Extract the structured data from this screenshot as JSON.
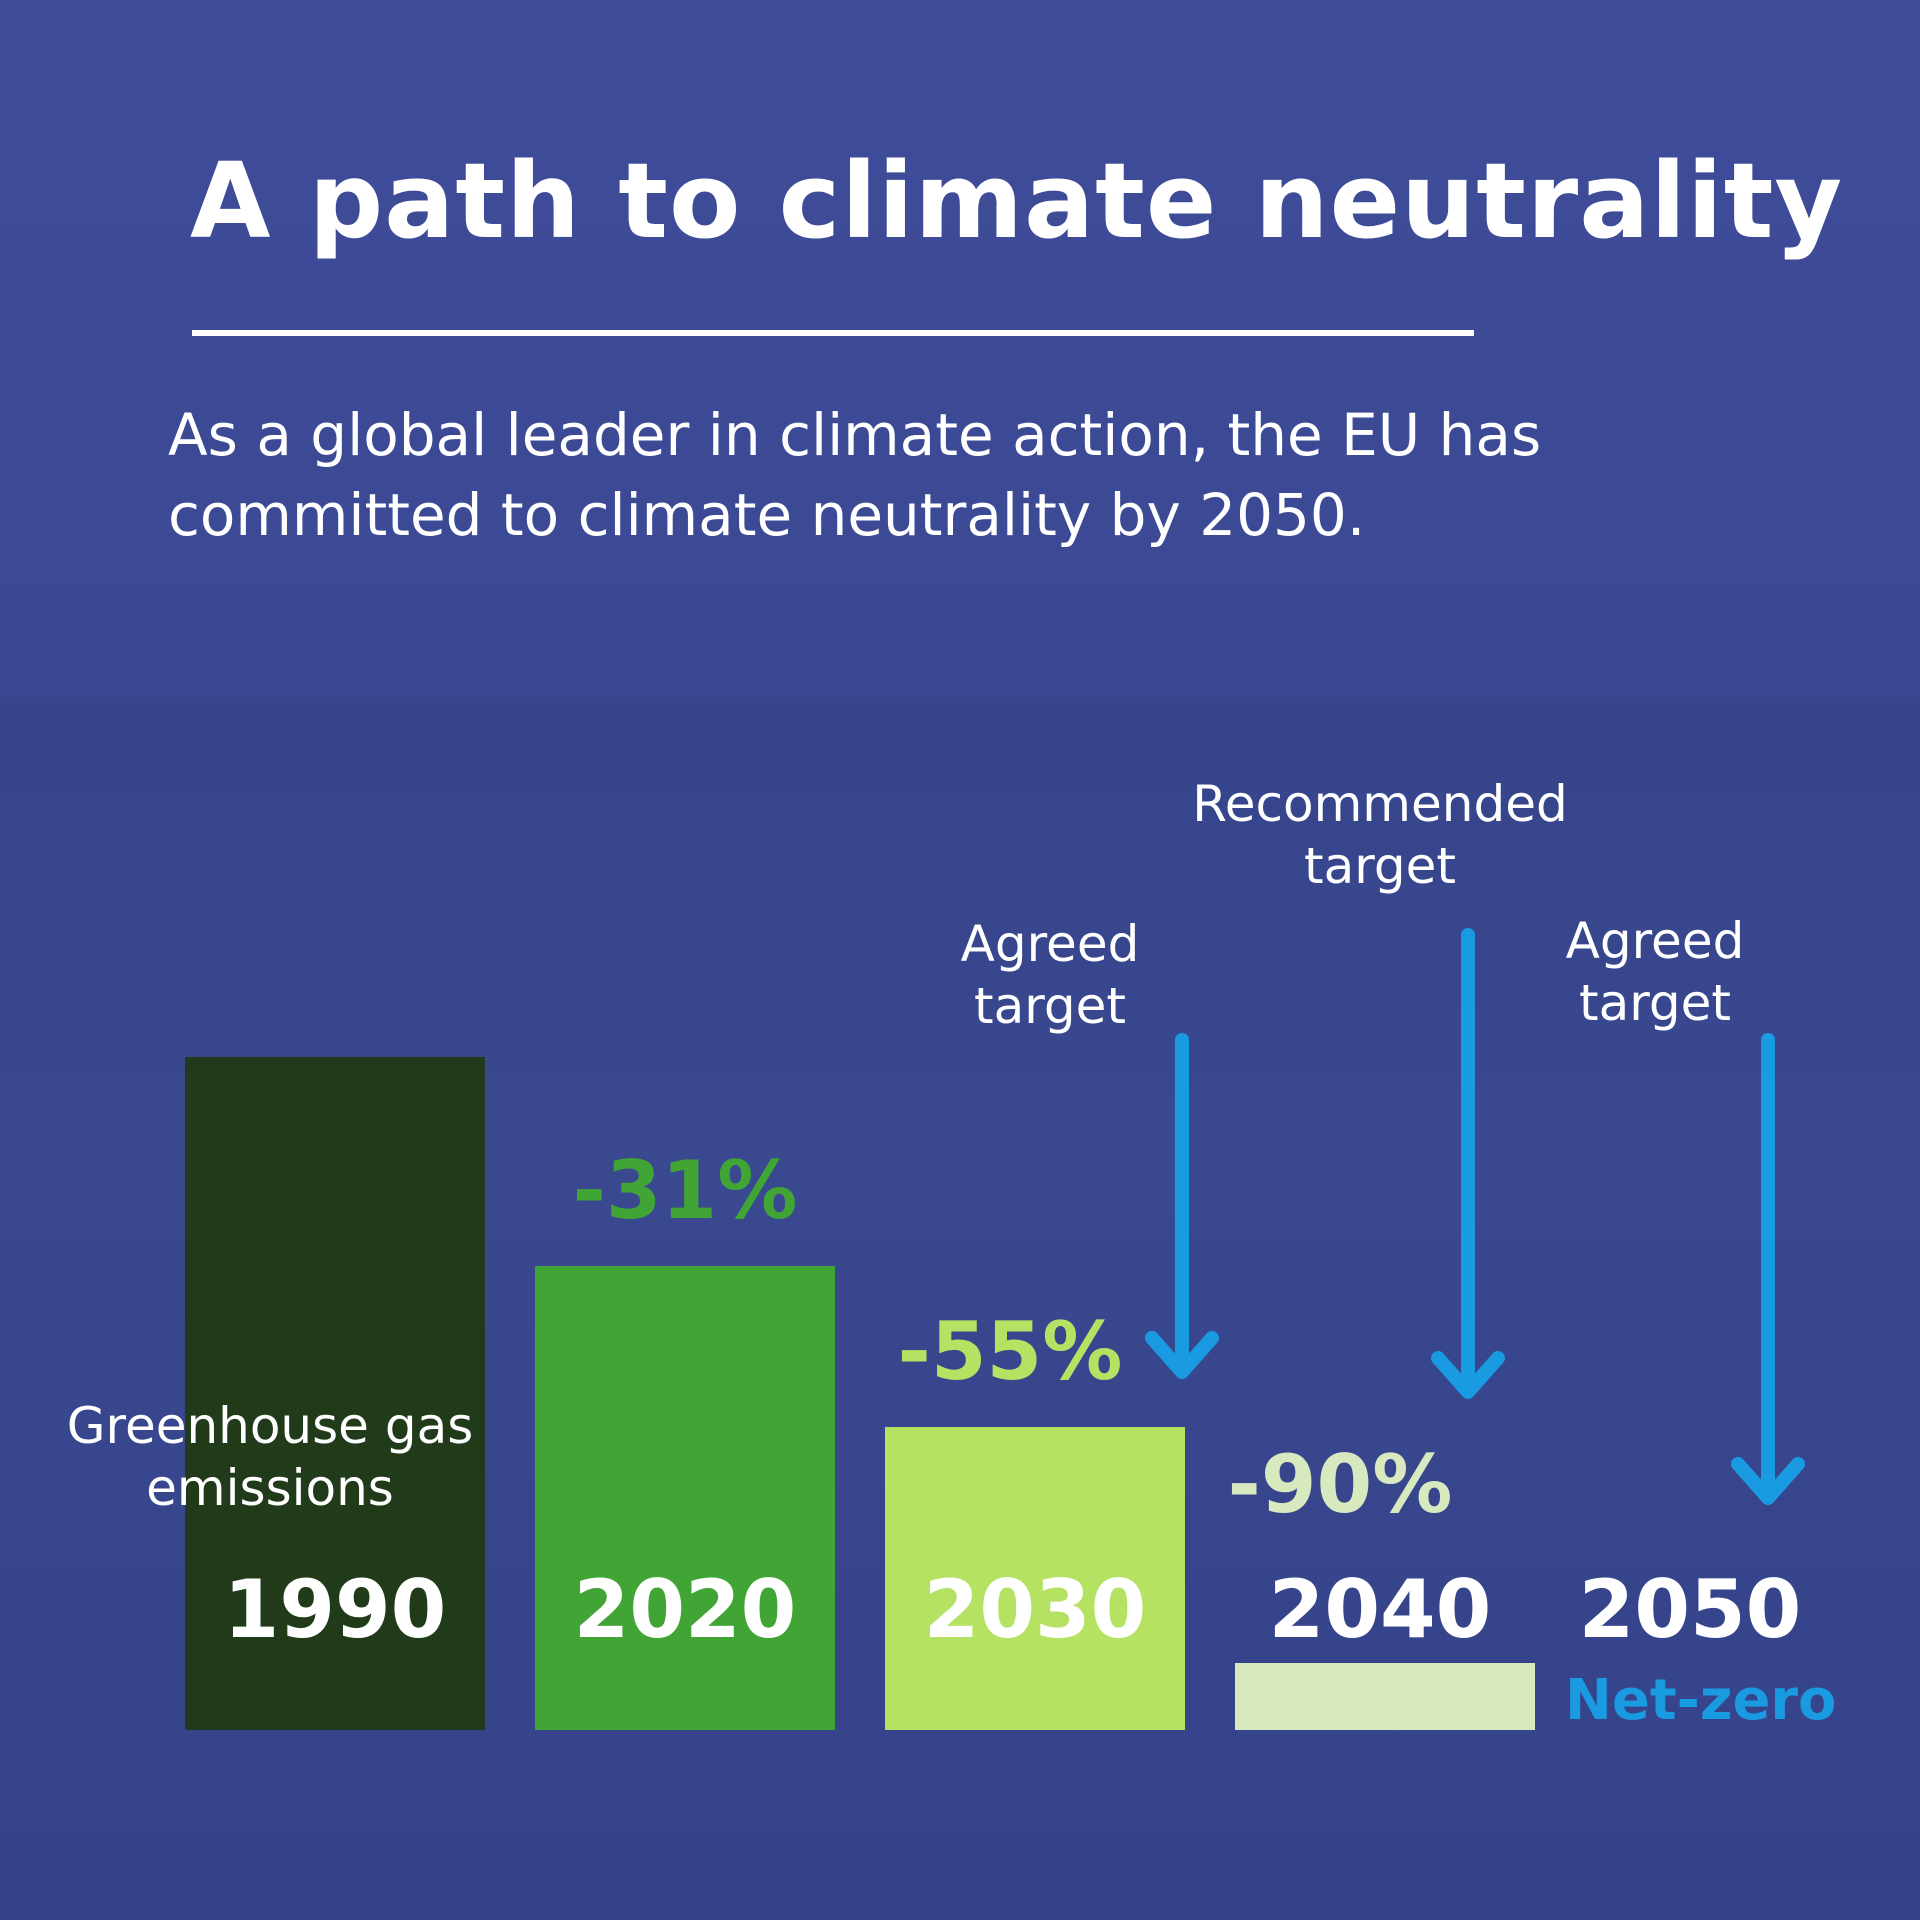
{
  "title": "A path to climate neutrality",
  "subtitle": "As a global leader in climate action, the EU has committed to climate neutrality by 2050.",
  "chart_data": {
    "type": "bar",
    "ylabel": "Greenhouse gas emissions",
    "categories": [
      "1990",
      "2020",
      "2030",
      "2040",
      "2050"
    ],
    "values": [
      100,
      69,
      45,
      10,
      0
    ],
    "labels": [
      "",
      "-31%",
      "-55%",
      "-90%",
      ""
    ],
    "colors": [
      "#213a19",
      "#41a535",
      "#b5e263",
      "#d8e8bf",
      ""
    ],
    "label_colors": [
      "",
      "#41a535",
      "#b5e263",
      "#d8e8bf",
      ""
    ],
    "annotations": [
      {
        "year": "2030",
        "text": "Agreed target"
      },
      {
        "year": "2040",
        "text": "Recommended target"
      },
      {
        "year": "2050",
        "text": "Agreed target"
      }
    ],
    "end_label": "Net-zero",
    "arrow_color": "#1a9ae0",
    "ylim": [
      0,
      100
    ]
  }
}
